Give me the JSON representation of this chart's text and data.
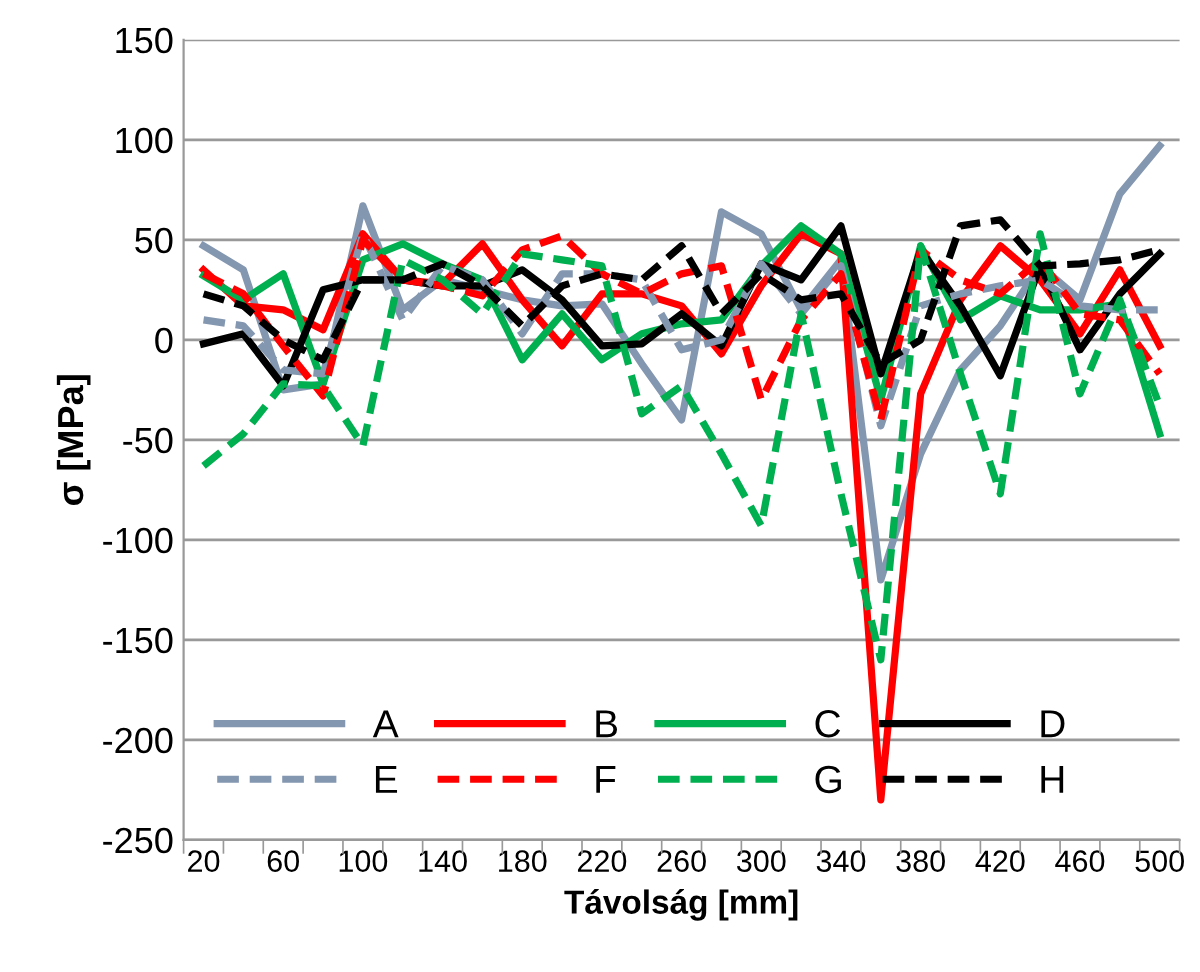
{
  "chart_data": {
    "type": "line",
    "xlabel": "Távolság [mm]",
    "ylabel": "σ [MPa]",
    "categories": [
      "20",
      null,
      "60",
      null,
      "100",
      null,
      "140",
      null,
      "180",
      null,
      "220",
      null,
      "260",
      null,
      "300",
      null,
      "340",
      null,
      "380",
      null,
      "420",
      null,
      "460",
      null,
      "500"
    ],
    "ylim": [
      -250,
      150
    ],
    "yticks": [
      -250,
      -200,
      -150,
      -100,
      -50,
      0,
      50,
      100,
      150
    ],
    "grid": "y",
    "legend": "bottom",
    "marker": "none",
    "series": [
      {
        "name": "A",
        "color": "#8497b0",
        "line_style": "solid",
        "values": [
          47,
          35,
          -25,
          -22,
          67,
          15,
          30,
          25,
          20,
          17,
          18,
          -12,
          -40,
          64,
          53,
          15,
          40,
          -120,
          -57,
          -15,
          7,
          37,
          20,
          73,
          97
        ]
      },
      {
        "name": "B",
        "color": "#ff0000",
        "line_style": "solid",
        "values": [
          35,
          17,
          15,
          5,
          53,
          30,
          28,
          48,
          20,
          -3,
          23,
          23,
          17,
          -7,
          27,
          53,
          43,
          -230,
          -27,
          20,
          47,
          30,
          3,
          35,
          -3
        ]
      },
      {
        "name": "C",
        "color": "#00b050",
        "line_style": "solid",
        "values": [
          32,
          20,
          33,
          -22,
          40,
          48,
          38,
          30,
          -10,
          13,
          -10,
          3,
          8,
          10,
          37,
          57,
          43,
          -30,
          47,
          10,
          22,
          15,
          15,
          18,
          -47
        ]
      },
      {
        "name": "D",
        "color": "#000000",
        "line_style": "solid",
        "values": [
          -2,
          3,
          -23,
          25,
          30,
          30,
          27,
          27,
          35,
          20,
          -3,
          -2,
          13,
          -3,
          38,
          30,
          57,
          -17,
          45,
          17,
          -18,
          37,
          -5,
          23,
          43
        ]
      },
      {
        "name": "E",
        "color": "#8497b0",
        "line_style": "dashed",
        "values": [
          10,
          7,
          -15,
          -17,
          53,
          10,
          37,
          30,
          3,
          33,
          33,
          30,
          -5,
          0,
          38,
          13,
          37,
          -43,
          17,
          23,
          27,
          30,
          17,
          15,
          15
        ]
      },
      {
        "name": "F",
        "color": "#ff0000",
        "line_style": "dashed",
        "values": [
          33,
          23,
          -3,
          -28,
          50,
          30,
          27,
          22,
          45,
          52,
          33,
          23,
          33,
          37,
          -30,
          10,
          33,
          -40,
          45,
          30,
          23,
          40,
          13,
          10,
          -17
        ]
      },
      {
        "name": "G",
        "color": "#00b050",
        "line_style": "dashed",
        "values": [
          -63,
          -47,
          -22,
          -23,
          -53,
          40,
          30,
          13,
          43,
          40,
          37,
          -37,
          -23,
          -57,
          -93,
          13,
          -77,
          -160,
          47,
          -17,
          -77,
          53,
          -27,
          20,
          -33
        ]
      },
      {
        "name": "H",
        "color": "#000000",
        "line_style": "dashed",
        "values": [
          23,
          17,
          0,
          -10,
          30,
          30,
          38,
          27,
          7,
          27,
          33,
          30,
          47,
          13,
          33,
          20,
          23,
          -12,
          0,
          57,
          60,
          37,
          38,
          40,
          45
        ]
      }
    ]
  }
}
